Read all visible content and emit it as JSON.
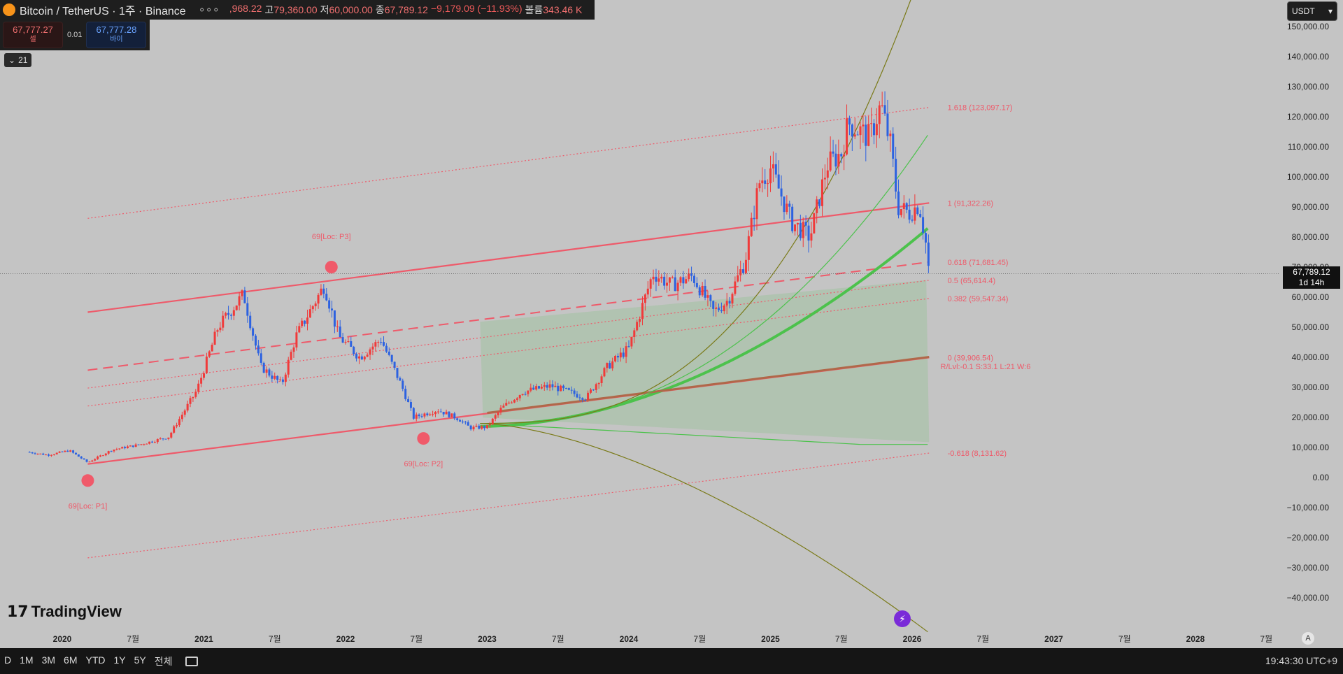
{
  "header": {
    "symbol": "Bitcoin / TetherUS · 1주 · Binance",
    "more": "∘∘∘",
    "ohlc": [
      {
        "k": "",
        "v": ",968.22",
        "cls": "up"
      },
      {
        "k": "고",
        "v": "79,360.00",
        "cls": "up"
      },
      {
        "k": "저",
        "v": "60,000.00",
        "cls": "up"
      },
      {
        "k": "종",
        "v": "67,789.12",
        "cls": "up"
      },
      {
        "k": "",
        "v": "−9,179.09 (−11.93%)",
        "cls": "dn"
      },
      {
        "k": "볼륨",
        "v": "343.46 K",
        "cls": "up"
      }
    ]
  },
  "trade": {
    "sell_price": "67,777.27",
    "sell_label": "셀",
    "spread": "0.01",
    "buy_price": "67,777.28",
    "buy_label": "바이"
  },
  "indicator_toggle": "21",
  "currency": "USDT",
  "logo_text": "TradingView",
  "price_tag": {
    "price": "67,789.12",
    "countdown": "1d 14h"
  },
  "bottom": {
    "ranges": [
      "D",
      "1M",
      "3M",
      "6M",
      "YTD",
      "1Y",
      "5Y",
      "전체"
    ],
    "clock": "19:43:30 UTC+9",
    "auto": "A"
  },
  "chart_data": {
    "type": "candlestick",
    "symbol": "BTCUSDT",
    "interval": "1주",
    "ylim": [
      -45000,
      155000
    ],
    "y_ticks": [
      150000,
      140000,
      130000,
      120000,
      110000,
      100000,
      90000,
      80000,
      70000,
      60000,
      50000,
      40000,
      30000,
      20000,
      10000,
      0,
      -10000,
      -20000,
      -30000,
      -40000
    ],
    "y_tick_labels": [
      "150,000.00",
      "140,000.00",
      "130,000.00",
      "120,000.00",
      "110,000.00",
      "100,000.00",
      "90,000.00",
      "80,000.00",
      "70,000.00",
      "60,000.00",
      "50,000.00",
      "40,000.00",
      "30,000.00",
      "20,000.00",
      "10,000.00",
      "0.00",
      "−10,000.00",
      "−20,000.00",
      "−30,000.00",
      "−40,000.00"
    ],
    "x_ticks": [
      {
        "t": 2020.0,
        "label": "2020",
        "major": true
      },
      {
        "t": 2020.5,
        "label": "7월",
        "major": false
      },
      {
        "t": 2021.0,
        "label": "2021",
        "major": true
      },
      {
        "t": 2021.5,
        "label": "7월",
        "major": false
      },
      {
        "t": 2022.0,
        "label": "2022",
        "major": true
      },
      {
        "t": 2022.5,
        "label": "7월",
        "major": false
      },
      {
        "t": 2023.0,
        "label": "2023",
        "major": true
      },
      {
        "t": 2023.5,
        "label": "7월",
        "major": false
      },
      {
        "t": 2024.0,
        "label": "2024",
        "major": true
      },
      {
        "t": 2024.5,
        "label": "7월",
        "major": false
      },
      {
        "t": 2025.0,
        "label": "2025",
        "major": true
      },
      {
        "t": 2025.5,
        "label": "7월",
        "major": false
      },
      {
        "t": 2026.0,
        "label": "2026",
        "major": true
      },
      {
        "t": 2026.5,
        "label": "7월",
        "major": false
      },
      {
        "t": 2027.0,
        "label": "2027",
        "major": true
      },
      {
        "t": 2027.5,
        "label": "7월",
        "major": false
      },
      {
        "t": 2028.0,
        "label": "2028",
        "major": true
      },
      {
        "t": 2028.5,
        "label": "7월",
        "major": false
      }
    ],
    "price_path": [
      [
        2019.75,
        8500
      ],
      [
        2019.9,
        7500
      ],
      [
        2020.05,
        9000
      ],
      [
        2020.18,
        5000
      ],
      [
        2020.35,
        9200
      ],
      [
        2020.55,
        11000
      ],
      [
        2020.75,
        13500
      ],
      [
        2020.95,
        29000
      ],
      [
        2021.1,
        50000
      ],
      [
        2021.28,
        61000
      ],
      [
        2021.4,
        37000
      ],
      [
        2021.55,
        31000
      ],
      [
        2021.65,
        47000
      ],
      [
        2021.85,
        64000
      ],
      [
        2021.95,
        47000
      ],
      [
        2022.1,
        40000
      ],
      [
        2022.25,
        46000
      ],
      [
        2022.4,
        30000
      ],
      [
        2022.48,
        20000
      ],
      [
        2022.65,
        22500
      ],
      [
        2022.8,
        19500
      ],
      [
        2022.88,
        16500
      ],
      [
        2023.0,
        16800
      ],
      [
        2023.1,
        23000
      ],
      [
        2023.25,
        28500
      ],
      [
        2023.45,
        30500
      ],
      [
        2023.7,
        26500
      ],
      [
        2023.85,
        37000
      ],
      [
        2024.0,
        43000
      ],
      [
        2024.17,
        68000
      ],
      [
        2024.3,
        64000
      ],
      [
        2024.45,
        67000
      ],
      [
        2024.6,
        55000
      ],
      [
        2024.7,
        59000
      ],
      [
        2024.82,
        72000
      ],
      [
        2024.92,
        98000
      ],
      [
        2025.0,
        103000
      ],
      [
        2025.15,
        85000
      ],
      [
        2025.28,
        80000
      ],
      [
        2025.4,
        104000
      ],
      [
        2025.5,
        108000
      ],
      [
        2025.55,
        118000
      ],
      [
        2025.7,
        113000
      ],
      [
        2025.78,
        124000
      ],
      [
        2025.85,
        110000
      ],
      [
        2025.9,
        90000
      ],
      [
        2025.98,
        88000
      ],
      [
        2026.05,
        91000
      ],
      [
        2026.1,
        77000
      ],
      [
        2026.12,
        67789
      ]
    ],
    "last_price": 67789.12,
    "channel": {
      "upper_start": [
        2020.18,
        55000
      ],
      "upper_end": [
        2026.12,
        91322
      ],
      "lower_start": [
        2020.18,
        4500
      ],
      "lower_end": [
        2026.12,
        39906
      ]
    },
    "fib_levels": [
      {
        "label": "1.618 (123,097.17)",
        "value": 123097.17,
        "style": "dotted"
      },
      {
        "label": "1 (91,322.26)",
        "value": 91322.26,
        "style": "solid"
      },
      {
        "label": "0.618 (71,681.45)",
        "value": 71681.45,
        "style": "dashed"
      },
      {
        "label": "0.5 (65,614.4)",
        "value": 65614.4,
        "style": "dotted"
      },
      {
        "label": "0.382 (59,547.34)",
        "value": 59547.34,
        "style": "dotted"
      },
      {
        "label": "0 (39,906.54)",
        "value": 39906.54,
        "style": "solid"
      },
      {
        "label": "-0.618 (8,131.62)",
        "value": 8131.62,
        "style": "dotted"
      }
    ],
    "info_label": "R/Lvl:-0.1 S:33.1 L:21 W:6",
    "pivots": [
      {
        "label": "69[Loc: P1]",
        "t": 2020.18,
        "price": -1000
      },
      {
        "label": "69[Loc: P2]",
        "t": 2022.55,
        "price": 13000
      },
      {
        "label": "69[Loc: P3]",
        "t": 2021.9,
        "price": 70000
      }
    ],
    "grid": false,
    "legend": "none"
  },
  "colors": {
    "bull": "#f03a3a",
    "bear": "#2d62e0",
    "channel": "#ee5a6a",
    "green": "#4cc24c",
    "olive": "#7a7a18",
    "ma_brown": "#b0684a"
  }
}
